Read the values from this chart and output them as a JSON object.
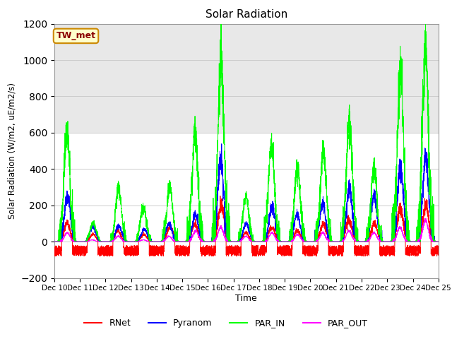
{
  "title": "Solar Radiation",
  "ylabel": "Solar Radiation (W/m2, uE/m2/s)",
  "xlabel": "Time",
  "ylim": [
    -200,
    1200
  ],
  "xlim": [
    0,
    360
  ],
  "yticks": [
    -200,
    0,
    200,
    400,
    600,
    800,
    1000,
    1200
  ],
  "xtick_labels": [
    "Dec 10",
    "Dec 11",
    "Dec 12",
    "Dec 13",
    "Dec 14",
    "Dec 15",
    "Dec 16",
    "Dec 17",
    "Dec 18",
    "Dec 19",
    "Dec 20",
    "Dec 21",
    "Dec 22",
    "Dec 23",
    "Dec 24",
    "Dec 25"
  ],
  "xtick_positions": [
    0,
    24,
    48,
    72,
    96,
    120,
    144,
    168,
    192,
    216,
    240,
    264,
    288,
    312,
    336,
    360
  ],
  "colors": {
    "RNet": "#ff0000",
    "Pyranom": "#0000ff",
    "PAR_IN": "#00ff00",
    "PAR_OUT": "#ff00ff"
  },
  "legend_label": "TW_met",
  "legend_bg": "#ffffcc",
  "legend_border": "#cc8800",
  "bg_lower": "#ffffff",
  "bg_upper": "#e8e8e8",
  "shade_y_low": 600,
  "shade_y_high": 1200,
  "par_in_peaks": [
    600,
    100,
    290,
    190,
    300,
    590,
    1000,
    250,
    530,
    400,
    480,
    660,
    400,
    940,
    1050
  ],
  "pyranom_peaks": [
    250,
    80,
    90,
    70,
    100,
    150,
    450,
    100,
    200,
    150,
    210,
    290,
    250,
    400,
    460
  ],
  "par_out_peaks": [
    50,
    10,
    30,
    10,
    30,
    60,
    80,
    30,
    50,
    40,
    50,
    60,
    50,
    80,
    120
  ],
  "rnet_peaks": [
    100,
    40,
    60,
    40,
    80,
    100,
    200,
    50,
    80,
    60,
    100,
    120,
    100,
    180,
    200
  ]
}
